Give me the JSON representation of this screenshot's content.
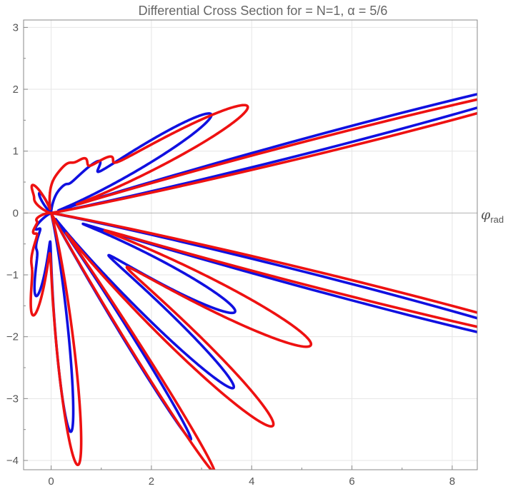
{
  "chart_data": {
    "type": "line",
    "title": "Differential Cross Section for = N=1, α = 5/6",
    "xlabel_main": "φ",
    "xlabel_sub": "rad",
    "ylabel": "",
    "xlim": [
      -0.55,
      8.5
    ],
    "ylim": [
      -4.15,
      3.12
    ],
    "xticks": [
      0,
      2,
      4,
      6,
      8
    ],
    "yticks": [
      -4,
      -3,
      -2,
      -1,
      0,
      1,
      2,
      3
    ],
    "xtick_labels": [
      "0",
      "2",
      "4",
      "6",
      "8"
    ],
    "ytick_labels": [
      "−4",
      "−3",
      "−2",
      "−1",
      "0",
      "1",
      "2",
      "3"
    ],
    "grid": true,
    "series": [
      {
        "color": "#1010e0",
        "lobes": [
          {
            "r": 10.5,
            "theta": 0.21,
            "width": 0.02
          },
          {
            "r": 3.5,
            "theta": 0.46,
            "width": 0.07
          },
          {
            "r": 1.2,
            "theta": 0.7,
            "width": 0.1
          },
          {
            "r": 0.45,
            "theta": 0.95,
            "width": 0.13
          },
          {
            "r": 0.3,
            "theta": 1.2,
            "width": 0.15
          },
          {
            "r": 10.5,
            "theta": -0.21,
            "width": 0.02
          },
          {
            "r": 4.0,
            "theta": -0.41,
            "width": 0.07
          },
          {
            "r": 4.6,
            "theta": -0.66,
            "width": 0.06
          },
          {
            "r": 4.6,
            "theta": -0.92,
            "width": 0.03
          },
          {
            "r": 3.55,
            "theta": -1.46,
            "width": 0.06
          },
          {
            "r": 1.3,
            "theta": -1.78,
            "width": 0.1
          },
          {
            "r": 0.6,
            "theta": -2.05,
            "width": 0.13
          },
          {
            "r": 0.4,
            "theta": 2.2,
            "width": 0.15
          },
          {
            "r": 0.4,
            "theta": -2.45,
            "width": 0.15
          }
        ]
      },
      {
        "color": "#ee1111",
        "lobes": [
          {
            "r": 10.5,
            "theta": 0.2,
            "width": 0.02
          },
          {
            "r": 4.15,
            "theta": 0.41,
            "width": 0.07
          },
          {
            "r": 1.42,
            "theta": 0.63,
            "width": 0.1
          },
          {
            "r": 0.9,
            "theta": 0.88,
            "width": 0.11
          },
          {
            "r": 0.6,
            "theta": 1.1,
            "width": 0.13
          },
          {
            "r": 0.45,
            "theta": 1.3,
            "width": 0.15
          },
          {
            "r": 0.35,
            "theta": 1.55,
            "width": 0.16
          },
          {
            "r": 10.5,
            "theta": -0.2,
            "width": 0.02
          },
          {
            "r": 5.6,
            "theta": -0.39,
            "width": 0.07
          },
          {
            "r": 5.6,
            "theta": -0.66,
            "width": 0.07
          },
          {
            "r": 5.3,
            "theta": -0.91,
            "width": 0.03
          },
          {
            "r": 4.1,
            "theta": -1.44,
            "width": 0.07
          },
          {
            "r": 1.55,
            "theta": -1.77,
            "width": 0.1
          },
          {
            "r": 0.82,
            "theta": -2.02,
            "width": 0.13
          },
          {
            "r": 0.55,
            "theta": 2.25,
            "width": 0.15
          },
          {
            "r": 0.45,
            "theta": -2.4,
            "width": 0.15
          },
          {
            "r": 0.35,
            "theta": 2.6,
            "width": 0.16
          },
          {
            "r": 0.3,
            "theta": -2.8,
            "width": 0.17
          }
        ]
      }
    ]
  }
}
